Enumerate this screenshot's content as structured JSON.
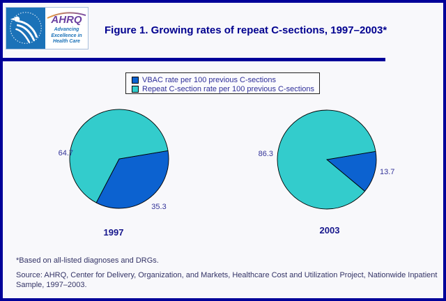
{
  "header": {
    "title": "Figure 1. Growing rates of repeat C-sections, 1997–2003*",
    "logo": {
      "hhs_icon": "hhs-eagle-icon",
      "ahrq_acronym": "AHRQ",
      "ahrq_tagline": "Advancing Excellence in Health Care"
    }
  },
  "legend": {
    "position": "top-center",
    "items": [
      {
        "label": "VBAC rate per 100 previous C-sections",
        "color": "#0C62D0"
      },
      {
        "label": "Repeat C-section rate per 100 previous C-sections",
        "color": "#33CCCC"
      }
    ]
  },
  "chart_data": [
    {
      "type": "pie",
      "title": "1997",
      "labels": [
        "VBAC rate per 100 previous C-sections",
        "Repeat C-section rate per 100 previous C-sections"
      ],
      "values": [
        35.3,
        64.7
      ],
      "data_labels": [
        "35.3",
        "64.7"
      ],
      "colors": [
        "#0C62D0",
        "#33CCCC"
      ],
      "start_angle_deg": 9.5,
      "direction": "clockwise",
      "legend_position": "top-center"
    },
    {
      "type": "pie",
      "title": "2003",
      "labels": [
        "VBAC rate per 100 previous C-sections",
        "Repeat C-section rate per 100 previous C-sections"
      ],
      "values": [
        13.7,
        86.3
      ],
      "data_labels": [
        "13.7",
        "86.3"
      ],
      "colors": [
        "#0C62D0",
        "#33CCCC"
      ],
      "start_angle_deg": 9.5,
      "direction": "clockwise",
      "legend_position": "top-center"
    }
  ],
  "footnote": "*Based on all-listed diagnoses and DRGs.",
  "source": "Source: AHRQ, Center for Delivery, Organization, and Markets, Healthcare Cost and Utilization Project, Nationwide Inpatient Sample, 1997–2003.",
  "colors": {
    "accent_navy": "#000099",
    "pie_blue": "#0C62D0",
    "pie_teal": "#33CCCC",
    "label_text": "#333399",
    "hhs_blue": "#1B72B8",
    "ahrq_purple": "#6A3FA0"
  }
}
